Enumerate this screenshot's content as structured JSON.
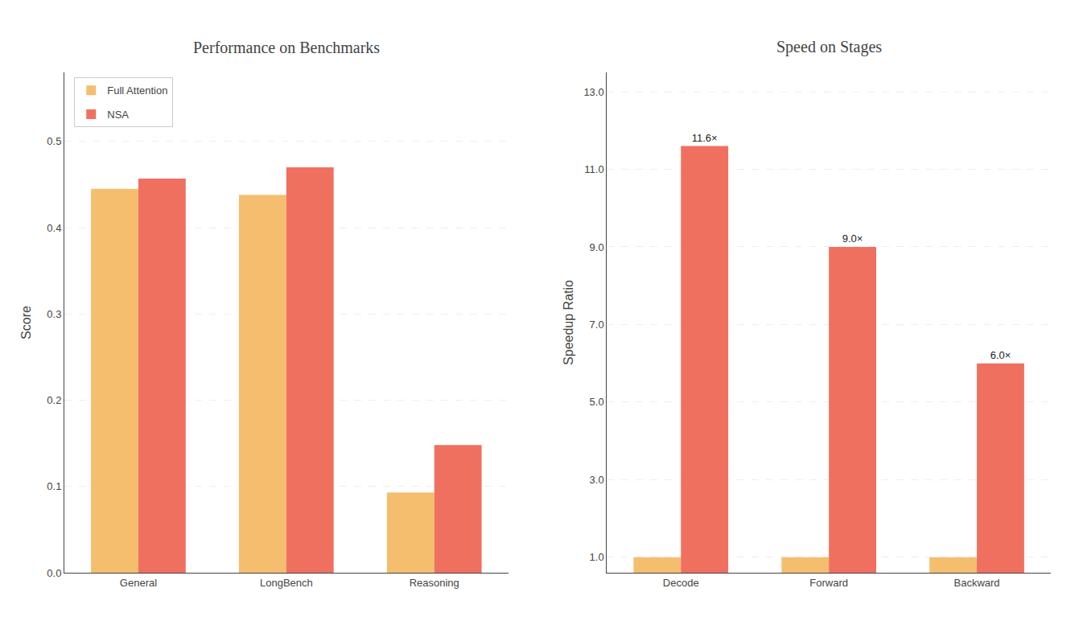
{
  "chart_data": [
    {
      "type": "bar",
      "title": "Performance on Benchmarks",
      "y_label": "Score",
      "categories": [
        "General",
        "LongBench",
        "Reasoning"
      ],
      "series": [
        {
          "name": "Full Attention",
          "color": "#F5BE6E",
          "values": [
            0.445,
            0.438,
            0.093
          ]
        },
        {
          "name": "NSA",
          "color": "#F07060",
          "values": [
            0.457,
            0.47,
            0.148
          ]
        }
      ],
      "ylim": [
        0.0,
        0.58
      ],
      "yticks": [
        {
          "value": 0.0,
          "label": "0.0"
        },
        0.1,
        0.2,
        0.3,
        0.4,
        0.5
      ],
      "grid": true,
      "legend": "upper left"
    },
    {
      "type": "bar",
      "title": "Speed on Stages",
      "y_label": "Speedup Ratio",
      "categories": [
        "Decode",
        "Forward",
        "Backward"
      ],
      "series": [
        {
          "name": "Full Attention",
          "color": "#F5BE6E",
          "values": [
            1.0,
            1.0,
            1.0
          ]
        },
        {
          "name": "NSA",
          "color": "#F07060",
          "values": [
            11.6,
            9.0,
            6.0
          ],
          "value_labels": [
            "11.6×",
            "9.0×",
            "6.0×"
          ]
        }
      ],
      "ylim": [
        0.6,
        13.5
      ],
      "yticks": [
        {
          "value": 1.0,
          "label": "1.0"
        },
        {
          "value": 3.0,
          "label": "3.0"
        },
        {
          "value": 5.0,
          "label": "5.0"
        },
        {
          "value": 7.0,
          "label": "7.0"
        },
        {
          "value": 9.0,
          "label": "9.0"
        },
        {
          "value": 11.0,
          "label": "11.0"
        },
        {
          "value": 13.0,
          "label": "13.0"
        }
      ],
      "grid": true
    }
  ]
}
